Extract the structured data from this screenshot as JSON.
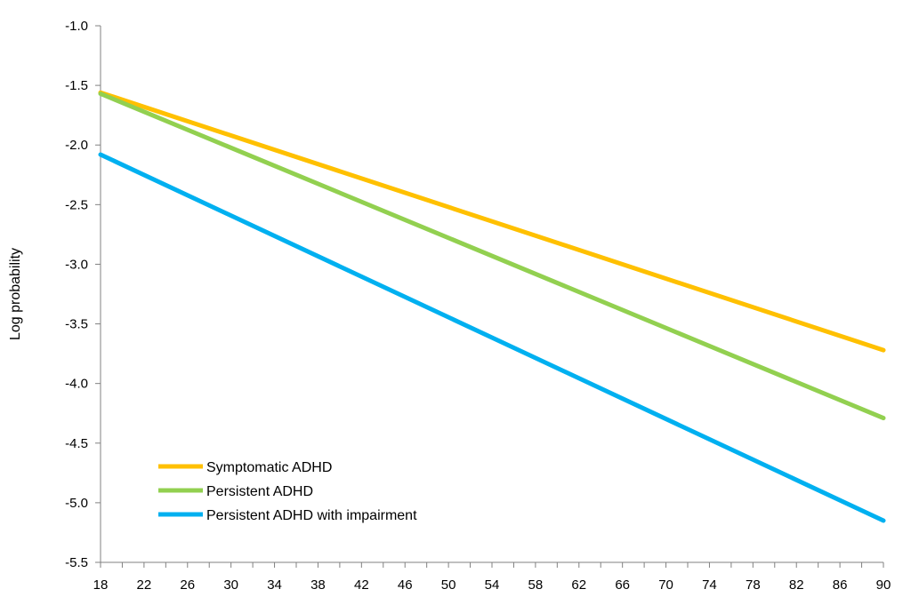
{
  "chart_data": {
    "type": "line",
    "title": "",
    "xlabel": "",
    "ylabel": "Log probability",
    "xlim": [
      18,
      90
    ],
    "ylim": [
      -5.5,
      -1.0
    ],
    "x_ticks": [
      18,
      22,
      26,
      30,
      34,
      38,
      42,
      46,
      50,
      54,
      58,
      62,
      66,
      70,
      74,
      78,
      82,
      86,
      90
    ],
    "y_ticks": [
      -1.0,
      -1.5,
      -2.0,
      -2.5,
      -3.0,
      -3.5,
      -4.0,
      -4.5,
      -5.0,
      -5.5
    ],
    "x_tick_labels": [
      "18",
      "22",
      "26",
      "30",
      "34",
      "38",
      "42",
      "46",
      "50",
      "54",
      "58",
      "62",
      "66",
      "70",
      "74",
      "78",
      "82",
      "86",
      "90"
    ],
    "y_tick_labels": [
      "-1.0",
      "-1.5",
      "-2.0",
      "-2.5",
      "-3.0",
      "-3.5",
      "-4.0",
      "-4.5",
      "-5.0",
      "-5.5"
    ],
    "grid": false,
    "legend_position": "bottom-left",
    "series": [
      {
        "name": "Symptomatic ADHD",
        "color": "#FFC000",
        "x": [
          18,
          90
        ],
        "y": [
          -1.56,
          -3.72
        ]
      },
      {
        "name": "Persistent ADHD",
        "color": "#92D050",
        "x": [
          18,
          90
        ],
        "y": [
          -1.57,
          -4.29
        ]
      },
      {
        "name": "Persistent ADHD with impairment",
        "color": "#00B0F0",
        "x": [
          18,
          90
        ],
        "y": [
          -2.08,
          -5.15
        ]
      }
    ]
  }
}
